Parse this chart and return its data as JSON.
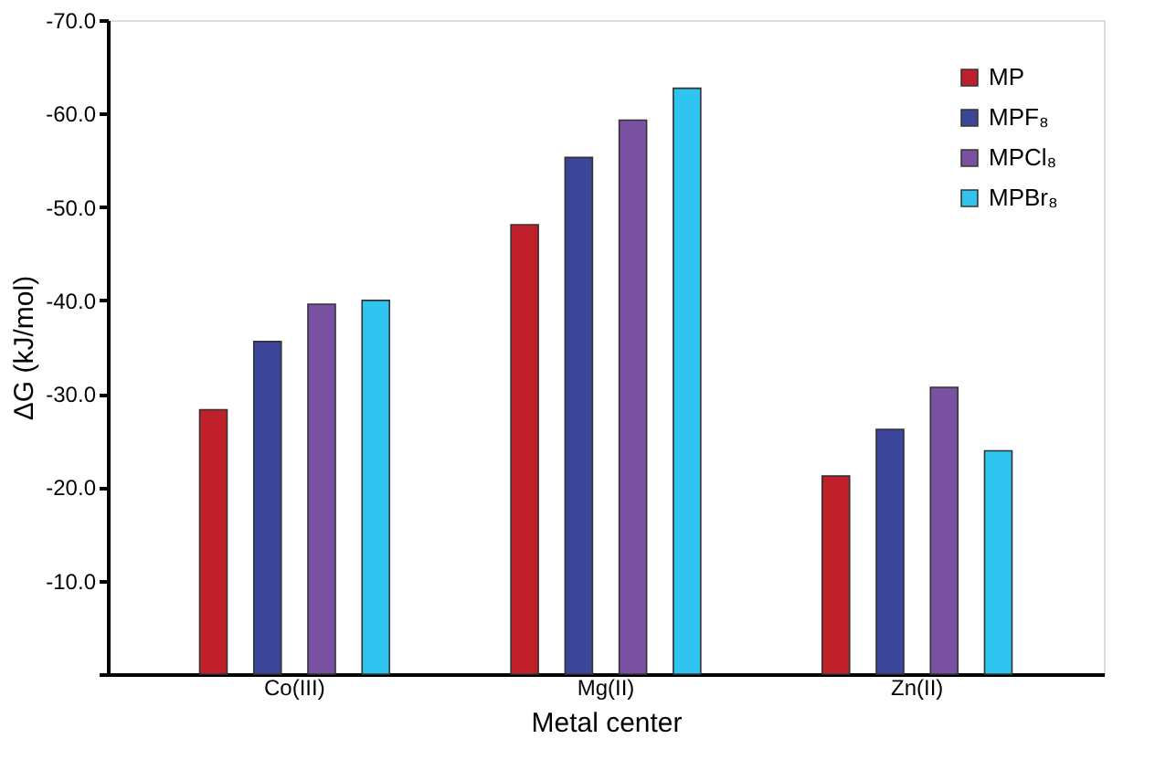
{
  "chart_data": {
    "type": "bar",
    "xlabel": "Metal center",
    "ylabel": "ΔG (kJ/mol)",
    "categories": [
      "Co(III)",
      "Mg(II)",
      "Zn(II)"
    ],
    "series": [
      {
        "name": "MP",
        "color": "#c0202a",
        "values": [
          -28.3,
          -48.1,
          -21.2
        ]
      },
      {
        "name": "MPF₈",
        "color": "#3b469a",
        "values": [
          -35.6,
          -55.3,
          -26.2
        ]
      },
      {
        "name": "MPCl₈",
        "color": "#7a50a0",
        "values": [
          -39.6,
          -59.3,
          -30.7
        ]
      },
      {
        "name": "MPBr₈",
        "color": "#30c4f0",
        "values": [
          -40.0,
          -62.7,
          -23.9
        ]
      }
    ],
    "ylim": [
      0,
      -70
    ],
    "yticks": [
      {
        "value": 0,
        "label": null
      },
      {
        "value": -10,
        "label": "-10.0"
      },
      {
        "value": -20,
        "label": "-20.0"
      },
      {
        "value": -30,
        "label": "-30.0"
      },
      {
        "value": -40,
        "label": "-40.0"
      },
      {
        "value": -50,
        "label": "-50.0"
      },
      {
        "value": -60,
        "label": "-60.0"
      },
      {
        "value": -70,
        "label": "-70.0"
      }
    ],
    "grid": false,
    "legend": "top right"
  }
}
